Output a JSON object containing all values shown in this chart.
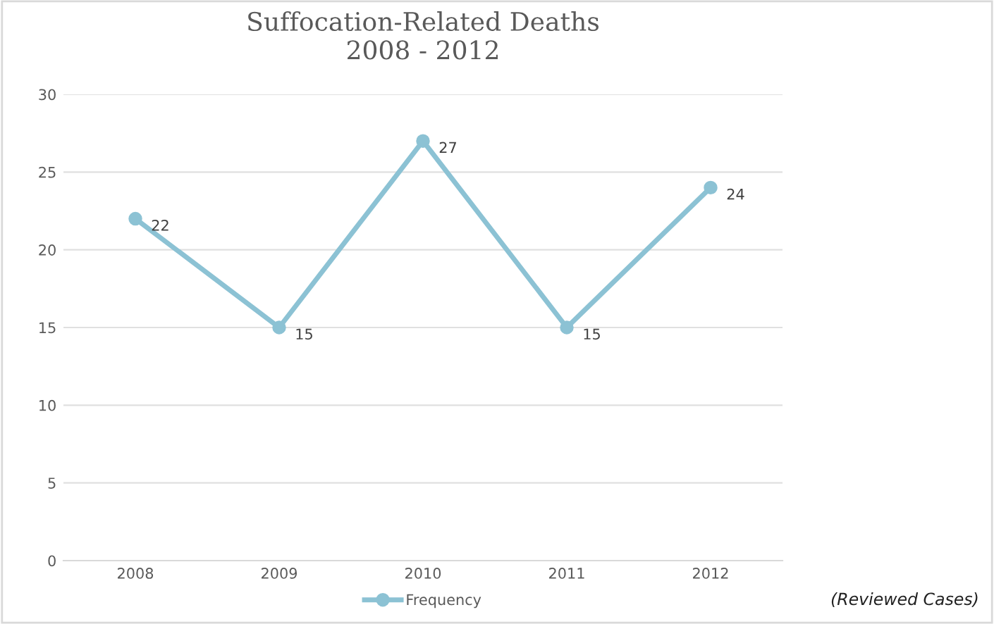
{
  "chart_data": {
    "type": "line",
    "title": "Suffocation-Related Deaths\n2008 - 2012",
    "categories": [
      "2008",
      "2009",
      "2010",
      "2011",
      "2012"
    ],
    "series": [
      {
        "name": "Frequency",
        "color": "#8cc2d4",
        "values": [
          22,
          15,
          27,
          15,
          24
        ]
      }
    ],
    "ylim": [
      0,
      30
    ],
    "yticks": [
      0,
      5,
      10,
      15,
      20,
      25,
      30
    ],
    "grid": "y",
    "legend": "bottom",
    "marker": "circle",
    "line_style": "solid",
    "data_labels": true,
    "annotations": [
      "(Reviewed Cases)"
    ]
  }
}
